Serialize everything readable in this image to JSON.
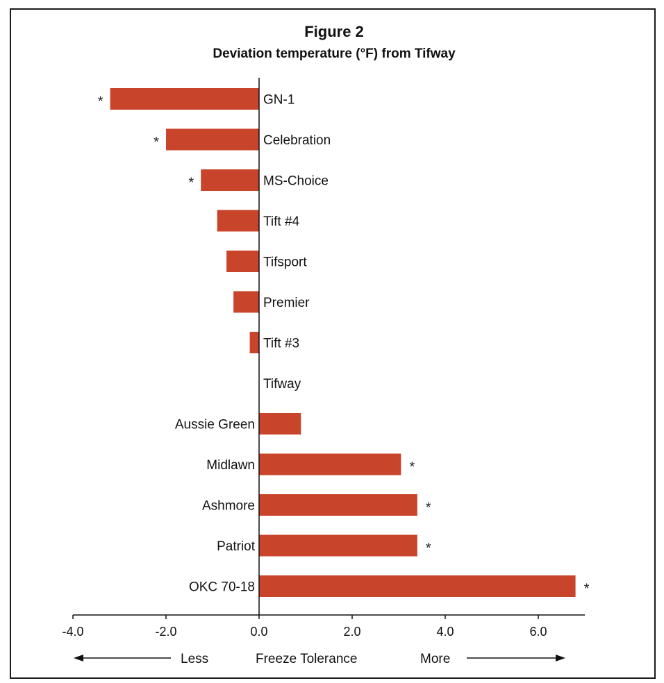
{
  "chart_data": {
    "type": "bar",
    "orientation": "horizontal",
    "title": "Figure 2",
    "subtitle": "Deviation temperature (°F) from Tifway",
    "categories": [
      "GN-1",
      "Celebration",
      "MS-Choice",
      "Tift #4",
      "Tifsport",
      "Premier",
      "Tift #3",
      "Tifway",
      "Aussie Green",
      "Midlawn",
      "Ashmore",
      "Patriot",
      "OKC 70-18"
    ],
    "values": [
      -3.2,
      -2.0,
      -1.25,
      -0.9,
      -0.7,
      -0.55,
      -0.2,
      0.0,
      0.9,
      3.05,
      3.4,
      3.4,
      6.8
    ],
    "significant": [
      true,
      true,
      true,
      false,
      false,
      false,
      false,
      false,
      false,
      true,
      true,
      true,
      true
    ],
    "significance_marker": "*",
    "xlim": [
      -4.0,
      7.0
    ],
    "xticks": [
      "-4.0",
      "-2.0",
      "0.0",
      "2.0",
      "4.0",
      "6.0"
    ],
    "xtick_values": [
      -4.0,
      -2.0,
      0.0,
      2.0,
      4.0,
      6.0
    ],
    "bar_color": "#c8442a",
    "grid": false,
    "xlabel": {
      "left": "Less",
      "center": "Freeze Tolerance",
      "right": "More"
    }
  }
}
